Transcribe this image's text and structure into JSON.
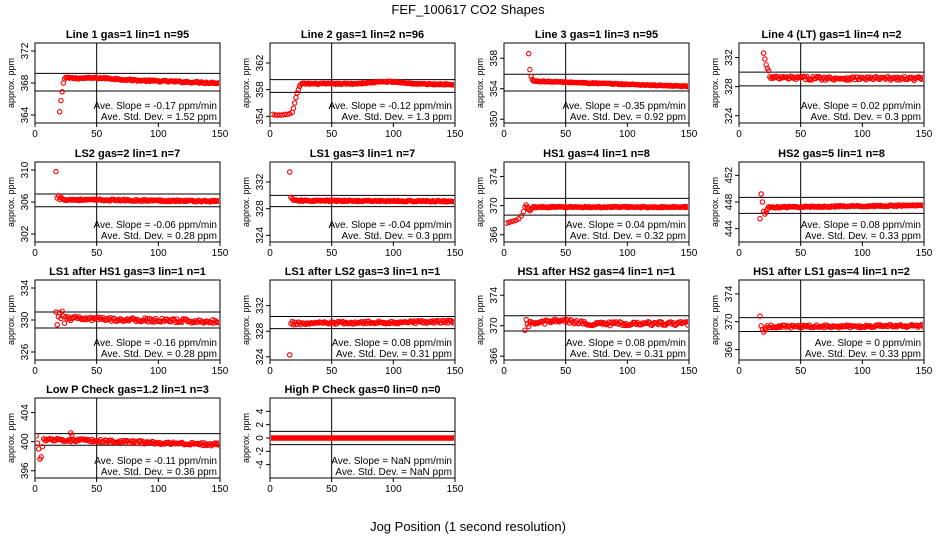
{
  "figure": {
    "title": "FEF_100617  CO2 Shapes",
    "xlabel": "Jog Position (1 second resolution)",
    "colors": {
      "points": "#ff0000",
      "axes": "#000000",
      "background": "#ffffff"
    }
  },
  "chart_data": [
    {
      "type": "scatter",
      "title": "Line 1 gas=1 lin=1 n=95",
      "ylabel": "approx. ppm",
      "xlim": [
        0,
        150
      ],
      "xticks": [
        0,
        50,
        100,
        150
      ],
      "ylim": [
        363,
        373
      ],
      "yticks": [
        364,
        368,
        372
      ],
      "hlines": [
        369.2,
        367.0
      ],
      "vline": 50,
      "slope_text": "Ave. Slope =  -0.17  ppm/min",
      "std_text": "Ave. Std. Dev. =  1.52  ppm",
      "points": [
        [
          20,
          364.4
        ],
        [
          21,
          365.8
        ],
        [
          22,
          366.9
        ],
        [
          23,
          368.0
        ],
        [
          24,
          368.5
        ],
        [
          25,
          368.7
        ]
      ],
      "series": {
        "x_start": 26,
        "x_end": 150,
        "step": 1,
        "y_start": 368.6,
        "y_end": 368.0,
        "jitter": 0.1,
        "bumps": [
          [
            55,
            0.15
          ]
        ]
      }
    },
    {
      "type": "scatter",
      "title": "Line 2 gas=1 lin=2 n=96",
      "ylabel": "approx. ppm",
      "xlim": [
        0,
        150
      ],
      "xticks": [
        0,
        50,
        100,
        150
      ],
      "ylim": [
        353,
        365
      ],
      "yticks": [
        354,
        358,
        362
      ],
      "hlines": [
        359.5,
        357.6
      ],
      "vline": 50,
      "slope_text": "Ave. Slope =  -0.12  ppm/min",
      "std_text": "Ave. Std. Dev. =  1.3  ppm",
      "points": [
        [
          2,
          354.3
        ],
        [
          4,
          354.2
        ],
        [
          6,
          354.2
        ],
        [
          8,
          354.2
        ],
        [
          10,
          354.2
        ],
        [
          12,
          354.3
        ],
        [
          14,
          354.3
        ],
        [
          16,
          354.4
        ],
        [
          18,
          354.6
        ],
        [
          19,
          355.2
        ],
        [
          20,
          356.0
        ],
        [
          21,
          356.8
        ],
        [
          22,
          357.5
        ],
        [
          23,
          358.0
        ],
        [
          24,
          358.5
        ],
        [
          25,
          358.8
        ]
      ],
      "series": {
        "x_start": 26,
        "x_end": 150,
        "step": 1,
        "y_start": 358.9,
        "y_end": 358.8,
        "jitter": 0.08,
        "bumps": [
          [
            95,
            0.35
          ]
        ]
      }
    },
    {
      "type": "scatter",
      "title": "Line 3 gas=1 lin=3 n=95",
      "ylabel": "approx. ppm",
      "xlim": [
        0,
        150
      ],
      "xticks": [
        0,
        50,
        100,
        150
      ],
      "ylim": [
        349.5,
        360
      ],
      "yticks": [
        350,
        354,
        358
      ],
      "hlines": [
        355.9,
        353.7
      ],
      "vline": 50,
      "slope_text": "Ave. Slope =  -0.35  ppm/min",
      "std_text": "Ave. Std. Dev. =  0.92  ppm",
      "points": [
        [
          20,
          358.6
        ],
        [
          21,
          356.5
        ],
        [
          22,
          355.6
        ],
        [
          23,
          355.2
        ]
      ],
      "series": {
        "x_start": 24,
        "x_end": 150,
        "step": 1,
        "y_start": 355.0,
        "y_end": 354.3,
        "jitter": 0.06,
        "bumps": []
      }
    },
    {
      "type": "scatter",
      "title": "Line 4 (LT) gas=1 lin=4 n=2",
      "ylabel": "approx. ppm",
      "xlim": [
        0,
        150
      ],
      "xticks": [
        0,
        50,
        100,
        150
      ],
      "ylim": [
        323,
        334
      ],
      "yticks": [
        324,
        328,
        332
      ],
      "hlines": [
        330.0,
        328.1
      ],
      "vline": 50,
      "slope_text": "Ave. Slope =  0.02  ppm/min",
      "std_text": "Ave. Std. Dev. =  0.3  ppm",
      "points": [
        [
          20,
          332.6
        ],
        [
          21,
          331.8
        ],
        [
          22,
          331.0
        ],
        [
          23,
          330.5
        ],
        [
          24,
          330.2
        ]
      ],
      "series": {
        "x_start": 25,
        "x_end": 150,
        "step": 1,
        "y_start": 329.2,
        "y_end": 329.1,
        "jitter": 0.25,
        "bumps": []
      }
    },
    {
      "type": "scatter",
      "title": "LS2 gas=2 lin=1 n=7",
      "ylabel": "approx. ppm",
      "xlim": [
        0,
        150
      ],
      "xticks": [
        0,
        50,
        100,
        150
      ],
      "ylim": [
        301,
        311
      ],
      "yticks": [
        302,
        306,
        310
      ],
      "hlines": [
        307.0,
        305.4
      ],
      "vline": 50,
      "slope_text": "Ave. Slope =  -0.06  ppm/min",
      "std_text": "Ave. Std. Dev. =  0.28  ppm",
      "points": [
        [
          17,
          309.8
        ],
        [
          18,
          306.5
        ],
        [
          19,
          306.8
        ],
        [
          20,
          306.3
        ],
        [
          21,
          306.6
        ],
        [
          22,
          306.4
        ]
      ],
      "series": {
        "x_start": 23,
        "x_end": 150,
        "step": 1,
        "y_start": 306.3,
        "y_end": 306.1,
        "jitter": 0.1,
        "bumps": []
      }
    },
    {
      "type": "scatter",
      "title": "LS1 gas=3 lin=1 n=7",
      "ylabel": "approx. ppm",
      "xlim": [
        0,
        150
      ],
      "xticks": [
        0,
        50,
        100,
        150
      ],
      "ylim": [
        323,
        335
      ],
      "yticks": [
        324,
        328,
        332
      ],
      "hlines": [
        330.0,
        328.3
      ],
      "vline": 50,
      "slope_text": "Ave. Slope =  -0.04  ppm/min",
      "std_text": "Ave. Std. Dev. =  0.3  ppm",
      "points": [
        [
          16,
          333.5
        ],
        [
          17,
          329.7
        ],
        [
          18,
          329.5
        ],
        [
          19,
          329.3
        ]
      ],
      "series": {
        "x_start": 20,
        "x_end": 150,
        "step": 1,
        "y_start": 329.2,
        "y_end": 329.1,
        "jitter": 0.1,
        "bumps": []
      }
    },
    {
      "type": "scatter",
      "title": "HS1 gas=4 lin=1 n=8",
      "ylabel": "approx. ppm",
      "xlim": [
        0,
        150
      ],
      "xticks": [
        0,
        50,
        100,
        150
      ],
      "ylim": [
        365,
        376
      ],
      "yticks": [
        366,
        370,
        374
      ],
      "hlines": [
        371.0,
        368.7
      ],
      "vline": 50,
      "slope_text": "Ave. Slope =  0.04  ppm/min",
      "std_text": "Ave. Std. Dev. =  0.32  ppm",
      "points": [
        [
          2,
          367.6
        ],
        [
          4,
          367.7
        ],
        [
          6,
          367.8
        ],
        [
          8,
          367.9
        ],
        [
          10,
          368.0
        ],
        [
          12,
          368.2
        ],
        [
          14,
          368.6
        ],
        [
          16,
          369.2
        ],
        [
          17,
          369.8
        ],
        [
          18,
          370.1
        ],
        [
          19,
          369.8
        ],
        [
          20,
          369.5
        ],
        [
          21,
          369.3
        ],
        [
          22,
          369.5
        ],
        [
          23,
          369.7
        ]
      ],
      "series": {
        "x_start": 24,
        "x_end": 150,
        "step": 1,
        "y_start": 369.8,
        "y_end": 369.8,
        "jitter": 0.08,
        "bumps": []
      }
    },
    {
      "type": "scatter",
      "title": "HS2 gas=5 lin=1 n=8",
      "ylabel": "approx. ppm",
      "xlim": [
        0,
        150
      ],
      "xticks": [
        0,
        50,
        100,
        150
      ],
      "ylim": [
        442,
        454
      ],
      "yticks": [
        444,
        448,
        452
      ],
      "hlines": [
        448.7,
        446.3
      ],
      "vline": 50,
      "slope_text": "Ave. Slope =  0.08  ppm/min",
      "std_text": "Ave. Std. Dev. =  0.33  ppm",
      "points": [
        [
          17,
          445.5
        ],
        [
          18,
          449.2
        ],
        [
          19,
          448.0
        ],
        [
          20,
          446.6
        ],
        [
          21,
          446.2
        ],
        [
          22,
          446.5
        ],
        [
          23,
          446.9
        ]
      ],
      "series": {
        "x_start": 24,
        "x_end": 150,
        "step": 1,
        "y_start": 447.2,
        "y_end": 447.5,
        "jitter": 0.1,
        "bumps": []
      }
    },
    {
      "type": "scatter",
      "title": "LS1 after HS1 gas=3 lin=1 n=1",
      "ylabel": "approx. ppm",
      "xlim": [
        0,
        150
      ],
      "xticks": [
        0,
        50,
        100,
        150
      ],
      "ylim": [
        325,
        335
      ],
      "yticks": [
        326,
        330,
        334
      ],
      "hlines": [
        331.0,
        329.0
      ],
      "vline": 50,
      "slope_text": "Ave. Slope =  -0.16  ppm/min",
      "std_text": "Ave. Std. Dev. =  0.28  ppm",
      "points": [
        [
          17,
          331.0
        ],
        [
          18,
          329.4
        ],
        [
          19,
          330.4
        ],
        [
          20,
          330.9
        ],
        [
          21,
          330.2
        ],
        [
          22,
          331.1
        ],
        [
          23,
          330.5
        ],
        [
          24,
          329.6
        ]
      ],
      "series": {
        "x_start": 25,
        "x_end": 150,
        "step": 1,
        "y_start": 330.2,
        "y_end": 329.8,
        "jitter": 0.25,
        "bumps": []
      }
    },
    {
      "type": "scatter",
      "title": "LS1 after LS2 gas=3 lin=1 n=1",
      "ylabel": "approx. ppm",
      "xlim": [
        0,
        150
      ],
      "xticks": [
        0,
        50,
        100,
        150
      ],
      "ylim": [
        323.5,
        336
      ],
      "yticks": [
        324,
        328,
        332
      ],
      "hlines": [
        330.3,
        328.4
      ],
      "vline": 50,
      "slope_text": "Ave. Slope =  0.08  ppm/min",
      "std_text": "Ave. Std. Dev. =  0.31  ppm",
      "points": [
        [
          16,
          324.3
        ],
        [
          17,
          329.2
        ],
        [
          18,
          329.5
        ],
        [
          19,
          329.0
        ]
      ],
      "series": {
        "x_start": 20,
        "x_end": 150,
        "step": 1,
        "y_start": 329.2,
        "y_end": 329.5,
        "jitter": 0.22,
        "bumps": []
      }
    },
    {
      "type": "scatter",
      "title": "HS1 after HS2 gas=4 lin=1 n=1",
      "ylabel": "approx. ppm",
      "xlim": [
        0,
        150
      ],
      "xticks": [
        0,
        50,
        100,
        150
      ],
      "ylim": [
        365.5,
        376
      ],
      "yticks": [
        366,
        370,
        374
      ],
      "hlines": [
        371.3,
        369.3
      ],
      "vline": 50,
      "slope_text": "Ave. Slope =  0.08  ppm/min",
      "std_text": "Ave. Std. Dev. =  0.31  ppm",
      "points": [
        [
          17,
          369.4
        ],
        [
          18,
          370.8
        ],
        [
          19,
          370.2
        ],
        [
          20,
          369.9
        ]
      ],
      "series": {
        "x_start": 21,
        "x_end": 150,
        "step": 1,
        "y_start": 370.2,
        "y_end": 370.3,
        "jitter": 0.25,
        "bumps": [
          [
            45,
            0.4
          ]
        ]
      }
    },
    {
      "type": "scatter",
      "title": "HS1 after LS1 gas=4 lin=1 n=2",
      "ylabel": "approx. ppm",
      "xlim": [
        0,
        150
      ],
      "xticks": [
        0,
        50,
        100,
        150
      ],
      "ylim": [
        364.5,
        376
      ],
      "yticks": [
        366,
        370,
        374
      ],
      "hlines": [
        370.6,
        368.6
      ],
      "vline": 50,
      "slope_text": "Ave. Slope =  0  ppm/min",
      "std_text": "Ave. Std. Dev. =  0.33  ppm",
      "points": [
        [
          17,
          370.8
        ],
        [
          18,
          369.4
        ],
        [
          19,
          368.9
        ],
        [
          20,
          368.5
        ],
        [
          21,
          368.8
        ]
      ],
      "series": {
        "x_start": 22,
        "x_end": 150,
        "step": 1,
        "y_start": 369.3,
        "y_end": 369.4,
        "jitter": 0.2,
        "bumps": []
      }
    },
    {
      "type": "scatter",
      "title": "Low P Check gas=1.2 lin=1 n=3",
      "ylabel": "approx. ppm",
      "xlim": [
        0,
        150
      ],
      "xticks": [
        0,
        50,
        100,
        150
      ],
      "ylim": [
        395,
        406
      ],
      "yticks": [
        396,
        400,
        404
      ],
      "hlines": [
        401.1,
        399.5
      ],
      "vline": 50,
      "slope_text": "Ave. Slope =  -0.11  ppm/min",
      "std_text": "Ave. Std. Dev. =  0.36  ppm",
      "points": [
        [
          1,
          400.8
        ],
        [
          2,
          399.8
        ],
        [
          3,
          399.0
        ],
        [
          4,
          397.6
        ],
        [
          5,
          397.9
        ],
        [
          6,
          399.3
        ],
        [
          7,
          400.4
        ],
        [
          8,
          400.2
        ],
        [
          29,
          401.2
        ],
        [
          30,
          400.9
        ]
      ],
      "series": {
        "x_start": 9,
        "x_end": 150,
        "step": 1,
        "y_start": 400.3,
        "y_end": 399.6,
        "jitter": 0.2,
        "bumps": []
      }
    },
    {
      "type": "scatter",
      "title": "High P Check gas=0 lin=0 n=0",
      "ylabel": "approx. ppm",
      "xlim": [
        0,
        150
      ],
      "xticks": [
        0,
        50,
        100,
        150
      ],
      "ylim": [
        -6,
        6
      ],
      "yticks": [
        -4,
        -2,
        0,
        2,
        4
      ],
      "hlines": [
        1.0,
        -1.0
      ],
      "vline": 50,
      "slope_text": "Ave. Slope =  NaN  ppm/min",
      "std_text": "Ave. Std. Dev. =  NaN  ppm",
      "points": [],
      "series": {
        "x_start": 0,
        "x_end": 150,
        "step": 1,
        "y_start": 0,
        "y_end": 0,
        "jitter": 0,
        "bumps": []
      }
    }
  ]
}
